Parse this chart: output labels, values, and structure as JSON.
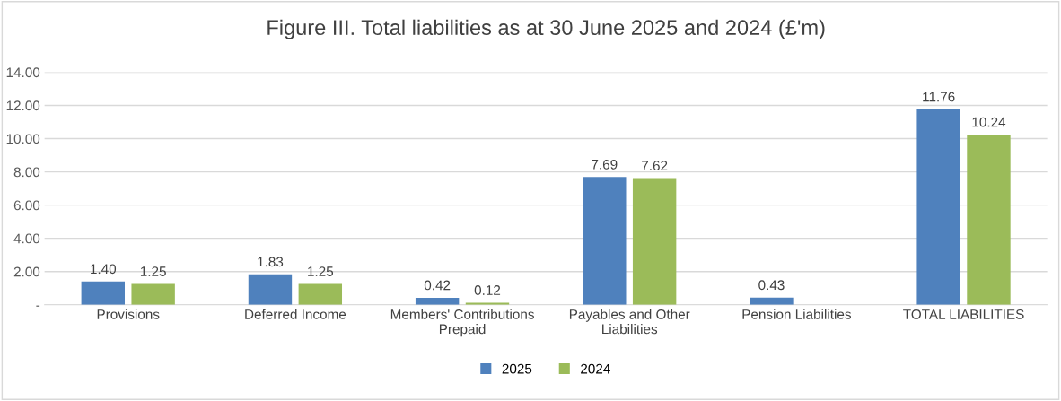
{
  "chart_data": {
    "type": "bar",
    "title": "Figure III. Total liabilities as at 30 June 2025 and 2024 (£'m)",
    "categories": [
      "Provisions",
      "Deferred Income",
      "Members' Contributions\nPrepaid",
      "Payables and Other\nLiabilities",
      "Pension Liabilities",
      "TOTAL LIABILITIES"
    ],
    "series": [
      {
        "name": "2025",
        "color": "#4f81bd",
        "values": [
          1.4,
          1.83,
          0.42,
          7.69,
          0.43,
          11.76
        ],
        "value_labels": [
          "1.40",
          "1.83",
          "0.42",
          "7.69",
          "0.43",
          "11.76"
        ]
      },
      {
        "name": "2024",
        "color": "#9bbb59",
        "values": [
          1.25,
          1.25,
          0.12,
          7.62,
          null,
          10.24
        ],
        "value_labels": [
          "1.25",
          "1.25",
          "0.12",
          "7.62",
          null,
          "10.24"
        ]
      }
    ],
    "ylim": [
      0,
      14
    ],
    "yticks": [
      {
        "value": 0,
        "label": "-"
      },
      {
        "value": 2,
        "label": "2.00"
      },
      {
        "value": 4,
        "label": "4.00"
      },
      {
        "value": 6,
        "label": "6.00"
      },
      {
        "value": 8,
        "label": "8.00"
      },
      {
        "value": 10,
        "label": "10.00"
      },
      {
        "value": 12,
        "label": "12.00"
      },
      {
        "value": 14,
        "label": "14.00"
      }
    ],
    "grid": "y",
    "legend": "bottom"
  }
}
